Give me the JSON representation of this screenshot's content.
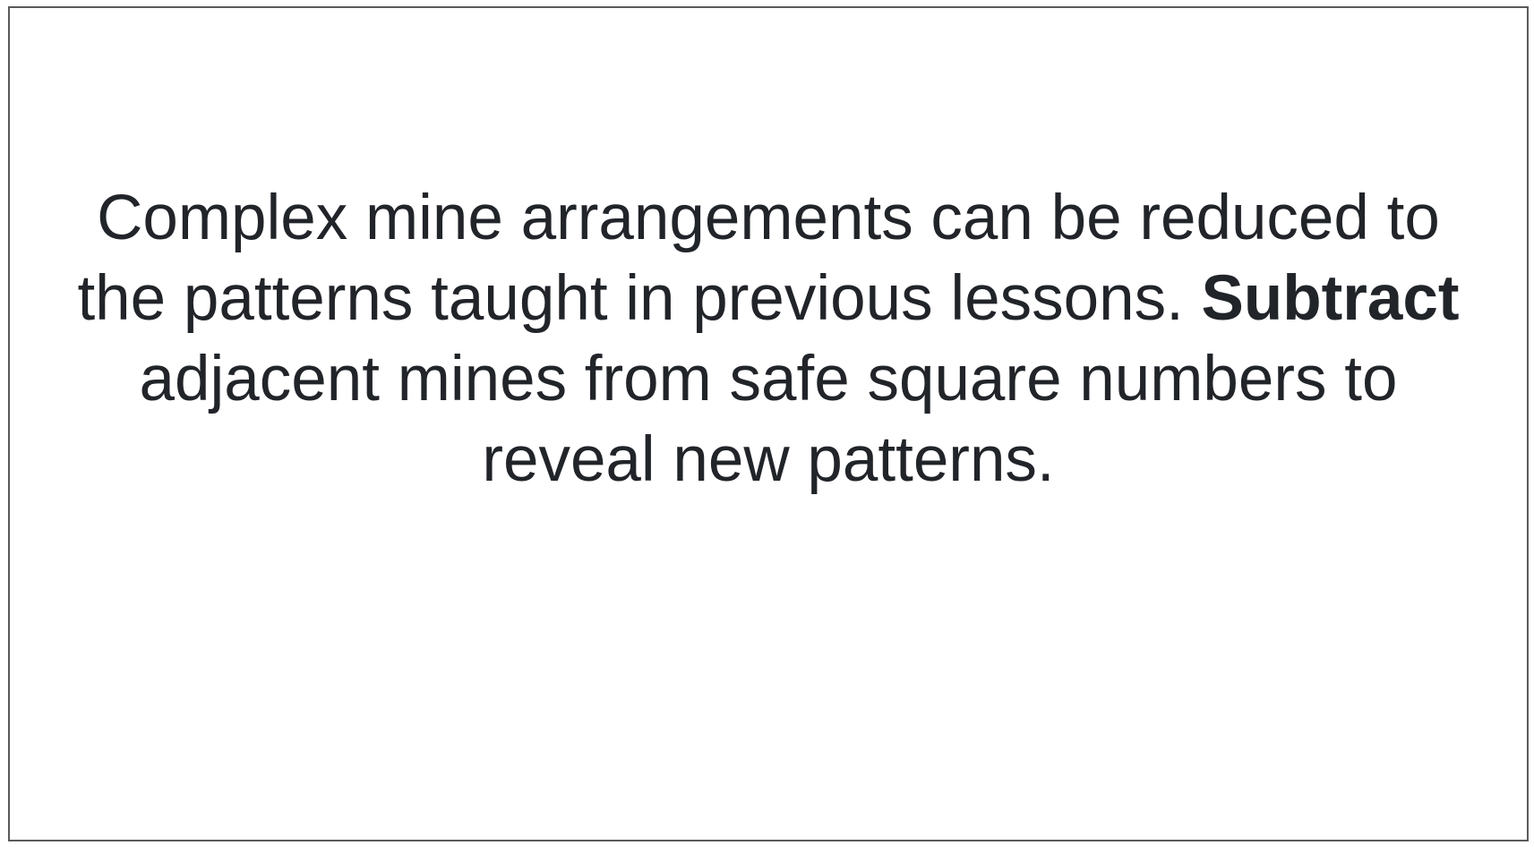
{
  "lesson": {
    "text_before": "Complex mine arrangements can be reduced to the patterns taught in previous lessons. ",
    "emphasis": "Subtract",
    "text_after": " adjacent mines from safe square numbers to reveal new patterns."
  },
  "colors": {
    "text": "#212429",
    "border": "#5a5a5a",
    "background": "#ffffff"
  }
}
